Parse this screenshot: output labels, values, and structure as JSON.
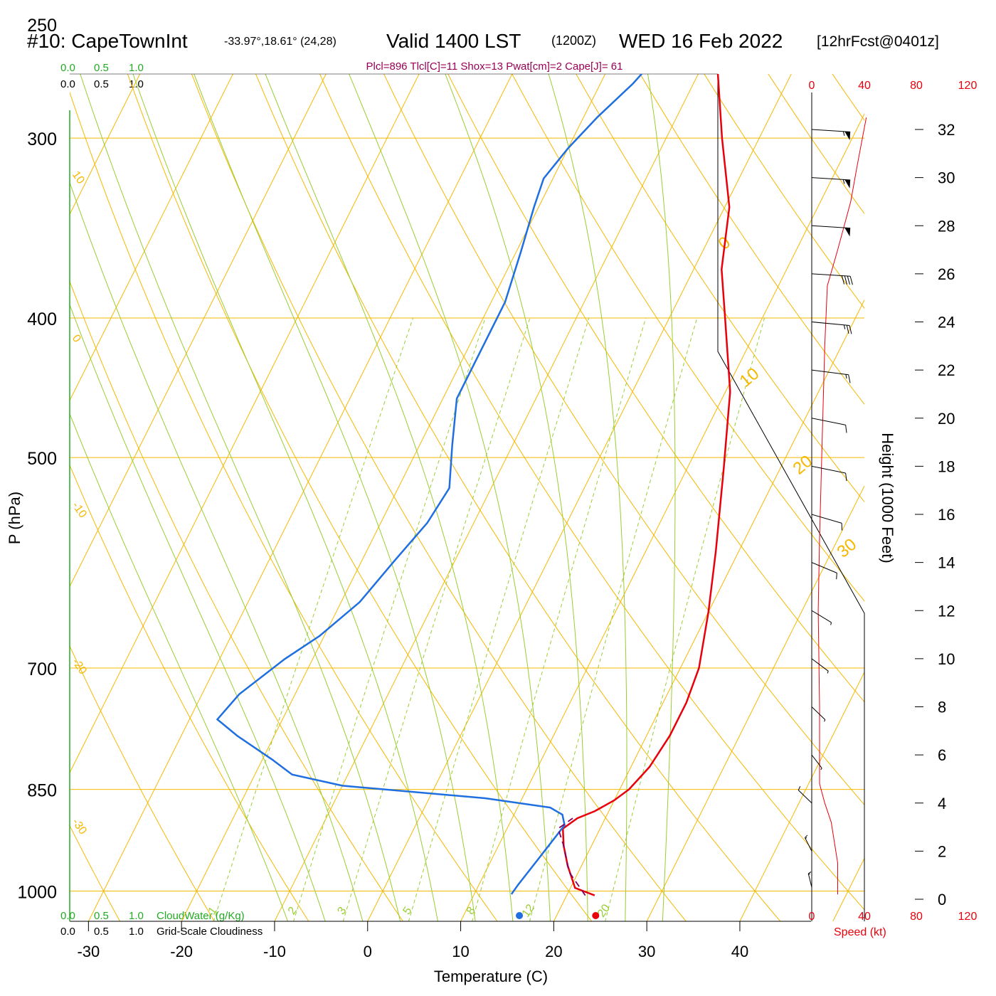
{
  "header": {
    "station": "#10: CapeTownInt",
    "coords": "-33.97°,18.61° (24,28)",
    "valid": "Valid 1400 LST",
    "zulu": "(1200Z)",
    "date": "WED 16 Feb 2022",
    "forecast": "[12hrFcst@0401z]",
    "indices": "Plcl=896 Tlcl[C]=11 Shox=13 Pwat[cm]=2 Cape[J]= 61"
  },
  "cloud_scale": {
    "values": [
      "0.0",
      "0.5",
      "1.0"
    ],
    "cloudwater_label": "CloudWater (g/Kg)",
    "cloudiness_label": "Grid-Scale Cloudiness"
  },
  "colors": {
    "temperature": "#e8000b",
    "dewpoint": "#1f6fe0",
    "parcel": "#800060",
    "isobar": "#f5b800",
    "adiabat": "#f5b800",
    "moist_adiabat": "#9acd32",
    "mixing_ratio": "#9acd32",
    "speed": "#e8000b",
    "cloud_scale": "#22aa22",
    "indices": "#990055"
  },
  "chart_data": {
    "type": "line",
    "title": "Skew-T log-P sounding",
    "xlabel": "Temperature (C)",
    "ylabel": "P (hPa)",
    "right_axis_label": "Height (1000 Feet)",
    "speed_axis_label": "Speed (kt)",
    "pressure_axis": {
      "scale": "log",
      "range": [
        1050,
        250
      ],
      "ticks": [
        250,
        300,
        400,
        500,
        700,
        850,
        1000
      ]
    },
    "temperature_ticks": [
      -30,
      -20,
      -10,
      0,
      10,
      20,
      30,
      40
    ],
    "height_ticks": [
      0,
      2,
      4,
      6,
      8,
      10,
      12,
      14,
      16,
      18,
      20,
      22,
      24,
      26,
      28,
      30,
      32
    ],
    "speed_ticks": [
      0,
      40,
      80,
      120
    ],
    "isotherm_labels": [
      "10",
      "0",
      "-10",
      "-20",
      "-30",
      "0",
      "10",
      "20",
      "30"
    ],
    "mixing_ratio_labels": [
      "1",
      "2",
      "3",
      "5",
      "8",
      "12",
      "20"
    ],
    "surface_temperature": 24.2,
    "surface_dewpoint": 16.0,
    "series": [
      {
        "name": "Temperature",
        "points": [
          [
            23.0,
            1007
          ],
          [
            20.5,
            995
          ],
          [
            18.5,
            960
          ],
          [
            17.0,
            930
          ],
          [
            16.0,
            905
          ],
          [
            17.0,
            890
          ],
          [
            18.5,
            880
          ],
          [
            20.0,
            865
          ],
          [
            21.0,
            850
          ],
          [
            22.0,
            820
          ],
          [
            22.5,
            780
          ],
          [
            22.5,
            740
          ],
          [
            22.0,
            700
          ],
          [
            20.0,
            640
          ],
          [
            17.5,
            580
          ],
          [
            14.0,
            510
          ],
          [
            10.5,
            450
          ],
          [
            6.0,
            400
          ],
          [
            3.0,
            370
          ],
          [
            0.5,
            335
          ],
          [
            -4.0,
            300
          ],
          [
            -8.0,
            270
          ]
        ]
      },
      {
        "name": "Dewpoint",
        "points": [
          [
            14.0,
            1005
          ],
          [
            14.2,
            990
          ],
          [
            15.0,
            950
          ],
          [
            16.0,
            900
          ],
          [
            15.2,
            885
          ],
          [
            13.5,
            875
          ],
          [
            6.0,
            862
          ],
          [
            -10.0,
            845
          ],
          [
            -16.0,
            830
          ],
          [
            -19.0,
            810
          ],
          [
            -24.0,
            780
          ],
          [
            -27.0,
            760
          ],
          [
            -26.0,
            730
          ],
          [
            -23.0,
            690
          ],
          [
            -20.5,
            665
          ],
          [
            -18.0,
            630
          ],
          [
            -16.5,
            590
          ],
          [
            -15.0,
            555
          ],
          [
            -14.5,
            525
          ],
          [
            -16.5,
            490
          ],
          [
            -18.5,
            455
          ],
          [
            -18.5,
            420
          ],
          [
            -18.5,
            390
          ],
          [
            -19.5,
            360
          ],
          [
            -20.5,
            335
          ],
          [
            -21.0,
            320
          ],
          [
            -20.0,
            305
          ],
          [
            -18.5,
            290
          ],
          [
            -16.5,
            275
          ],
          [
            -15.5,
            265
          ]
        ]
      },
      {
        "name": "Parcel",
        "points": [
          [
            22.0,
            1007
          ],
          [
            19.0,
            970
          ],
          [
            17.0,
            930
          ],
          [
            15.5,
            905
          ],
          [
            16.5,
            890
          ]
        ]
      },
      {
        "name": "Speed",
        "points": [
          [
            20,
            0.2
          ],
          [
            20,
            1.5
          ],
          [
            15,
            3.2
          ],
          [
            10,
            4.0
          ],
          [
            6,
            4.8
          ],
          [
            6,
            8.0
          ],
          [
            5,
            12.0
          ],
          [
            6,
            15.0
          ],
          [
            8,
            19.0
          ],
          [
            10,
            23.0
          ],
          [
            12,
            25.5
          ],
          [
            20,
            27.0
          ],
          [
            30,
            29.0
          ],
          [
            35,
            30.5
          ],
          [
            42,
            32.5
          ]
        ]
      }
    ],
    "wind_barbs": [
      {
        "height_kft": 32.0,
        "speed_kt": 55,
        "dir_deg": 280
      },
      {
        "height_kft": 30.0,
        "speed_kt": 55,
        "dir_deg": 280
      },
      {
        "height_kft": 28.0,
        "speed_kt": 50,
        "dir_deg": 280
      },
      {
        "height_kft": 26.0,
        "speed_kt": 40,
        "dir_deg": 280
      },
      {
        "height_kft": 24.0,
        "speed_kt": 25,
        "dir_deg": 285
      },
      {
        "height_kft": 22.0,
        "speed_kt": 15,
        "dir_deg": 290
      },
      {
        "height_kft": 20.0,
        "speed_kt": 12,
        "dir_deg": 300
      },
      {
        "height_kft": 18.0,
        "speed_kt": 10,
        "dir_deg": 300
      },
      {
        "height_kft": 16.0,
        "speed_kt": 10,
        "dir_deg": 310
      },
      {
        "height_kft": 14.0,
        "speed_kt": 10,
        "dir_deg": 320
      },
      {
        "height_kft": 12.0,
        "speed_kt": 8,
        "dir_deg": 330
      },
      {
        "height_kft": 10.0,
        "speed_kt": 8,
        "dir_deg": 335
      },
      {
        "height_kft": 8.0,
        "speed_kt": 8,
        "dir_deg": 340
      },
      {
        "height_kft": 6.0,
        "speed_kt": 8,
        "dir_deg": 345
      },
      {
        "height_kft": 4.0,
        "speed_kt": 10,
        "dir_deg": 160
      },
      {
        "height_kft": 2.0,
        "speed_kt": 15,
        "dir_deg": 170
      },
      {
        "height_kft": 0.5,
        "speed_kt": 18,
        "dir_deg": 175
      }
    ],
    "grid": true
  }
}
